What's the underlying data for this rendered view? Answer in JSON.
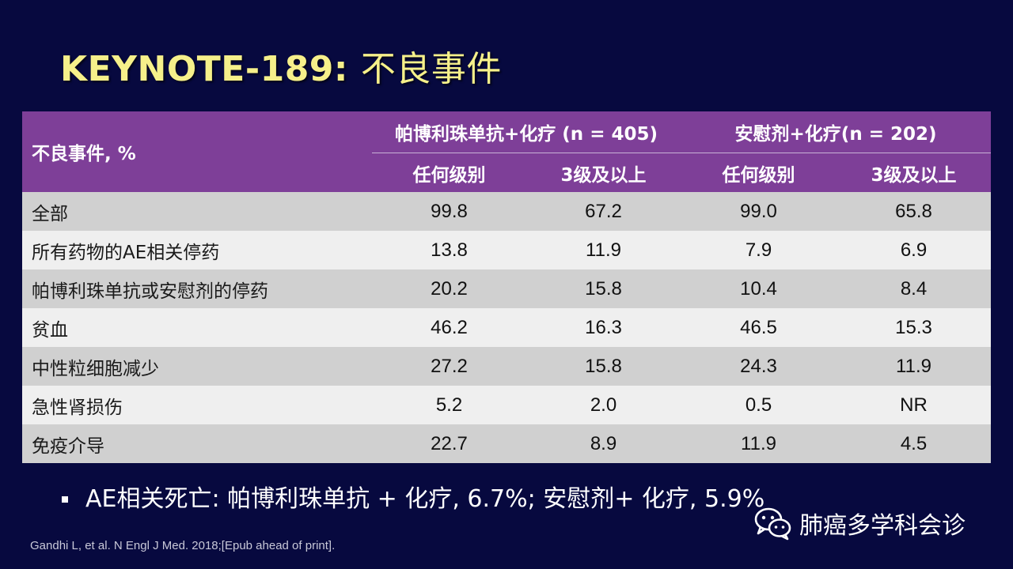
{
  "slide": {
    "title_en": "KEYNOTE-189:",
    "title_cn": "不良事件"
  },
  "table": {
    "row_header": "不良事件, %",
    "groups": [
      "帕博利珠单抗+化疗 (n = 405)",
      "安慰剂+化疗(n = 202)"
    ],
    "subheaders": [
      "任何级别",
      "3级及以上",
      "任何级别",
      "3级及以上"
    ],
    "rows": [
      {
        "label": "全部",
        "values": [
          "99.8",
          "67.2",
          "99.0",
          "65.8"
        ]
      },
      {
        "label": "所有药物的AE相关停药",
        "values": [
          "13.8",
          "11.9",
          "7.9",
          "6.9"
        ]
      },
      {
        "label": "帕博利珠单抗或安慰剂的停药",
        "values": [
          "20.2",
          "15.8",
          "10.4",
          "8.4"
        ]
      },
      {
        "label": "贫血",
        "values": [
          "46.2",
          "16.3",
          "46.5",
          "15.3"
        ]
      },
      {
        "label": "中性粒细胞减少",
        "values": [
          "27.2",
          "15.8",
          "24.3",
          "11.9"
        ]
      },
      {
        "label": "急性肾损伤",
        "values": [
          "5.2",
          "2.0",
          "0.5",
          "NR"
        ]
      },
      {
        "label": "免疫介导",
        "values": [
          "22.7",
          "8.9",
          "11.9",
          "4.5"
        ]
      }
    ]
  },
  "bullet": "AE相关死亡: 帕博利珠单抗 + 化疗, 6.7%; 安慰剂+ 化疗, 5.9%",
  "footnote": "Gandhi L, et al. N Engl J Med. 2018;[Epub ahead of print].",
  "watermark": "肺癌多学科会诊",
  "colors": {
    "background": "#07093f",
    "title": "#f6f08a",
    "header": "#7e3f98",
    "row_dark": "#d0d0d0",
    "row_light": "#efefef"
  }
}
